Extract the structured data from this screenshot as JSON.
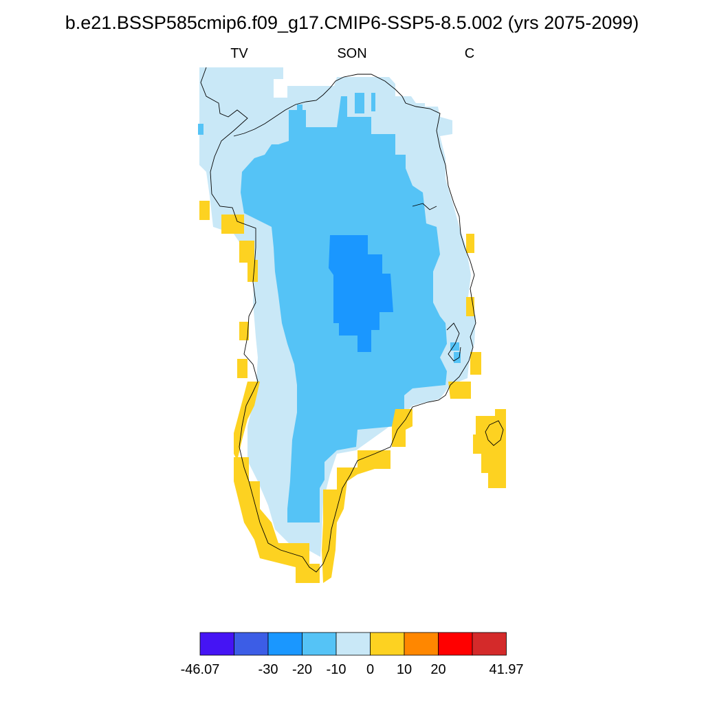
{
  "title": "b.e21.BSSP585cmip6.f09_g17.CMIP6-SSP5-8.5.002 (yrs 2075-2099)",
  "subtitles": {
    "left": "TV",
    "center": "SON",
    "right": "C"
  },
  "colors": {
    "c1": "#4514f4",
    "c2": "#3c5de6",
    "c3": "#1a97ff",
    "c4": "#55c3f6",
    "c5": "#c9e8f7",
    "c6": "#fdd221",
    "c7": "#ff8700",
    "c8": "#ff0000",
    "c9": "#d42a2a",
    "coast": "#000000"
  },
  "colorbar": {
    "bin_colors": [
      "#4514f4",
      "#3c5de6",
      "#1a97ff",
      "#55c3f6",
      "#c9e8f7",
      "#fdd221",
      "#ff8700",
      "#ff0000",
      "#d42a2a"
    ],
    "tick_labels": [
      "-46.07",
      "-30",
      "-20",
      "-10",
      "0",
      "10",
      "20",
      "41.97"
    ]
  }
}
